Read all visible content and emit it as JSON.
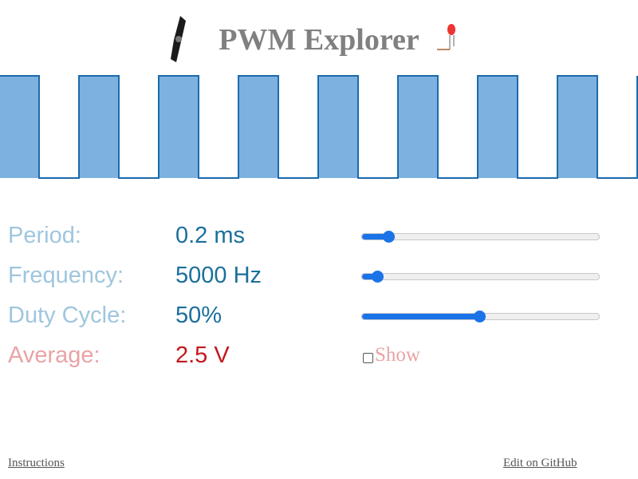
{
  "header": {
    "title": "PWM Explorer"
  },
  "rows": [
    {
      "label": "Period:",
      "value": "0.2 ms"
    },
    {
      "label": "Frequency:",
      "value": "5000 Hz"
    },
    {
      "label": "Duty Cycle:",
      "value": "50%"
    },
    {
      "label": "Average:",
      "value": "2.5 V"
    }
  ],
  "show_label": "Show",
  "footer": {
    "instructions": "Instructions",
    "github": "Edit on GitHub"
  }
}
